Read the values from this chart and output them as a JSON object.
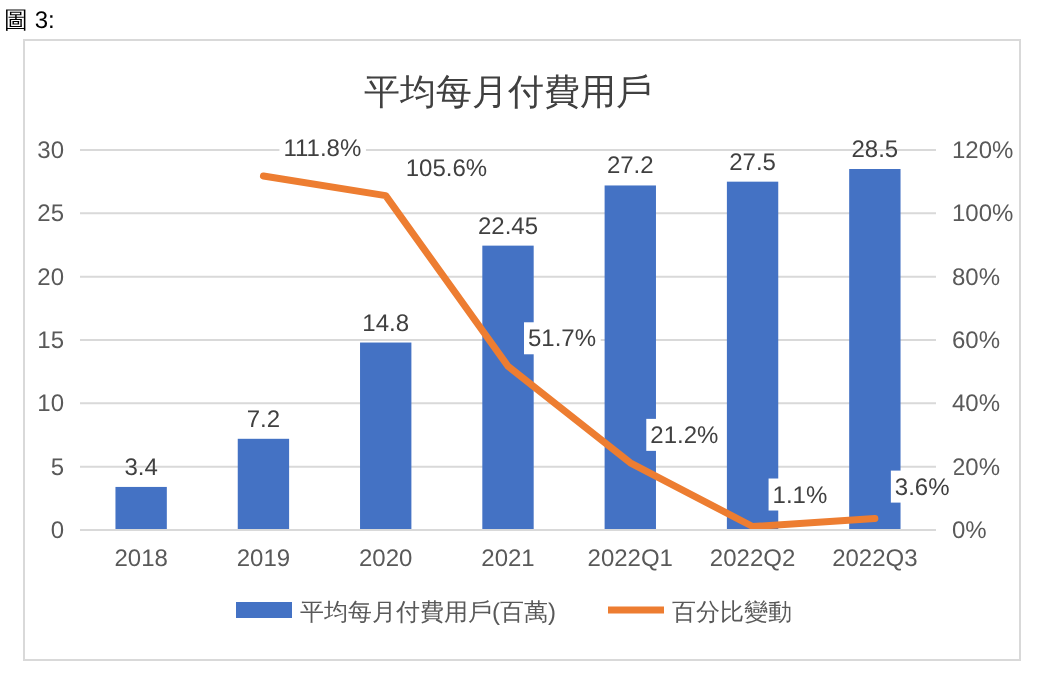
{
  "chart_data": {
    "type": "bar",
    "title": "平均每月付費用戶",
    "annotations": [
      "圖 3:"
    ],
    "categories": [
      "2018",
      "2019",
      "2020",
      "2021",
      "2022Q1",
      "2022Q2",
      "2022Q3"
    ],
    "series": [
      {
        "name": "平均每月付費用戶(百萬)",
        "color": "#4472c4",
        "values": [
          3.4,
          7.2,
          14.8,
          22.45,
          27.2,
          27.5,
          28.5
        ]
      },
      {
        "name": "百分比變動",
        "type": "line",
        "axis": "y2",
        "color": "#ed7d31",
        "values": [
          null,
          111.8,
          105.6,
          51.7,
          21.2,
          1.1,
          3.6
        ],
        "value_labels": [
          null,
          "111.8%",
          "105.6%",
          "51.7%",
          "21.2%",
          "1.1%",
          "3.6%"
        ]
      }
    ],
    "ylim": [
      0,
      30
    ],
    "yticks": [
      0,
      5,
      10,
      15,
      20,
      25,
      30
    ],
    "y2lim": [
      0,
      120
    ],
    "y2ticks": [
      {
        "value": 0,
        "label": "0%"
      },
      {
        "value": 20,
        "label": "20%"
      },
      {
        "value": 40,
        "label": "40%"
      },
      {
        "value": 60,
        "label": "60%"
      },
      {
        "value": 80,
        "label": "80%"
      },
      {
        "value": 100,
        "label": "100%"
      },
      {
        "value": 120,
        "label": "120%"
      }
    ],
    "grid": "y",
    "legend": "bottom",
    "data_labels": true
  }
}
